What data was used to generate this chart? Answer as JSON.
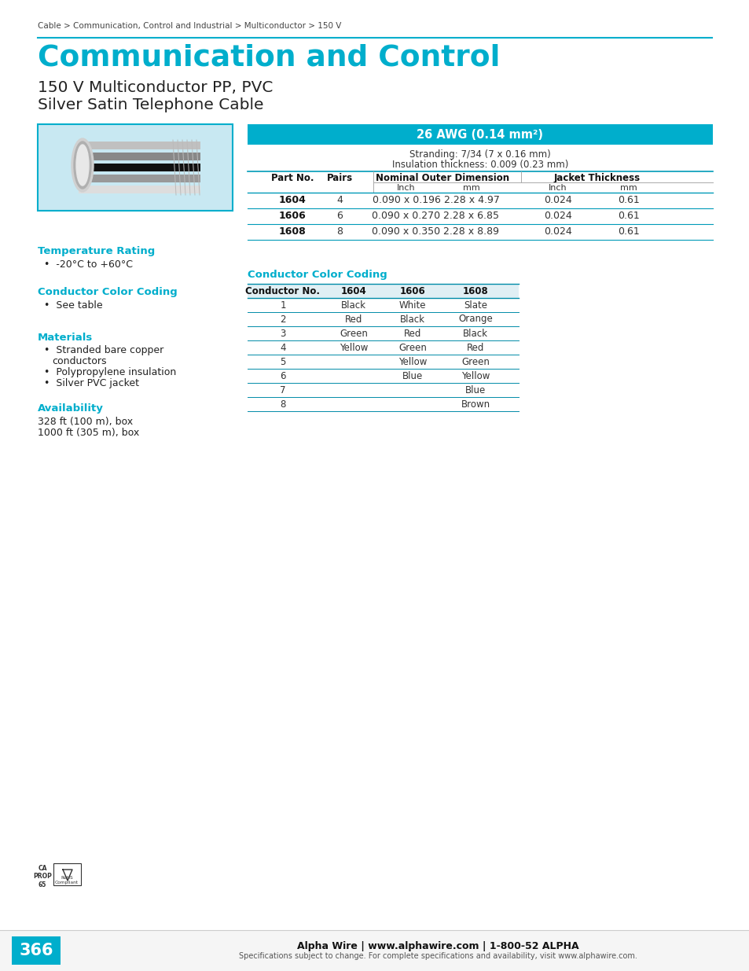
{
  "page_label": "Cable > Communication, Control and Industrial > Multiconductor > 150 V",
  "main_title": "Communication and Control",
  "subtitle1": "150 V Multiconductor PP, PVC",
  "subtitle2": "Silver Satin Telephone Cable",
  "cyan_color": "#00AECC",
  "light_cyan_bg": "#C8E8F2",
  "awg_header": "26 AWG (0.14 mm²)",
  "stranding_line1": "Stranding: 7/34 (7 x 0.16 mm)",
  "stranding_line2": "Insulation thickness: 0.009 (0.23 mm)",
  "table1_data": [
    [
      "1604",
      "4",
      "0.090 x 0.196",
      "2.28 x 4.97",
      "0.024",
      "0.61"
    ],
    [
      "1606",
      "6",
      "0.090 x 0.270",
      "2.28 x 6.85",
      "0.024",
      "0.61"
    ],
    [
      "1608",
      "8",
      "0.090 x 0.350",
      "2.28 x 8.89",
      "0.024",
      "0.61"
    ]
  ],
  "temp_title": "Temperature Rating",
  "temp_value": "-20°C to +60°C",
  "color_coding_title_left": "Conductor Color Coding",
  "color_coding_note": "See table",
  "materials_title": "Materials",
  "avail_title": "Availability",
  "avail_items": [
    "328 ft (100 m), box",
    "1000 ft (305 m), box"
  ],
  "color_table_title": "Conductor Color Coding",
  "color_table_headers": [
    "Conductor No.",
    "1604",
    "1606",
    "1608"
  ],
  "color_table_data": [
    [
      "1",
      "Black",
      "White",
      "Slate"
    ],
    [
      "2",
      "Red",
      "Black",
      "Orange"
    ],
    [
      "3",
      "Green",
      "Red",
      "Black"
    ],
    [
      "4",
      "Yellow",
      "Green",
      "Red"
    ],
    [
      "5",
      "",
      "Yellow",
      "Green"
    ],
    [
      "6",
      "",
      "Blue",
      "Yellow"
    ],
    [
      "7",
      "",
      "",
      "Blue"
    ],
    [
      "8",
      "",
      "",
      "Brown"
    ]
  ],
  "page_number": "366",
  "footer_bold": "Alpha Wire | www.alphawire.com | 1-800-52 ALPHA",
  "footer_normal": "Specifications subject to change. For complete specifications and availability, visit www.alphawire.com."
}
